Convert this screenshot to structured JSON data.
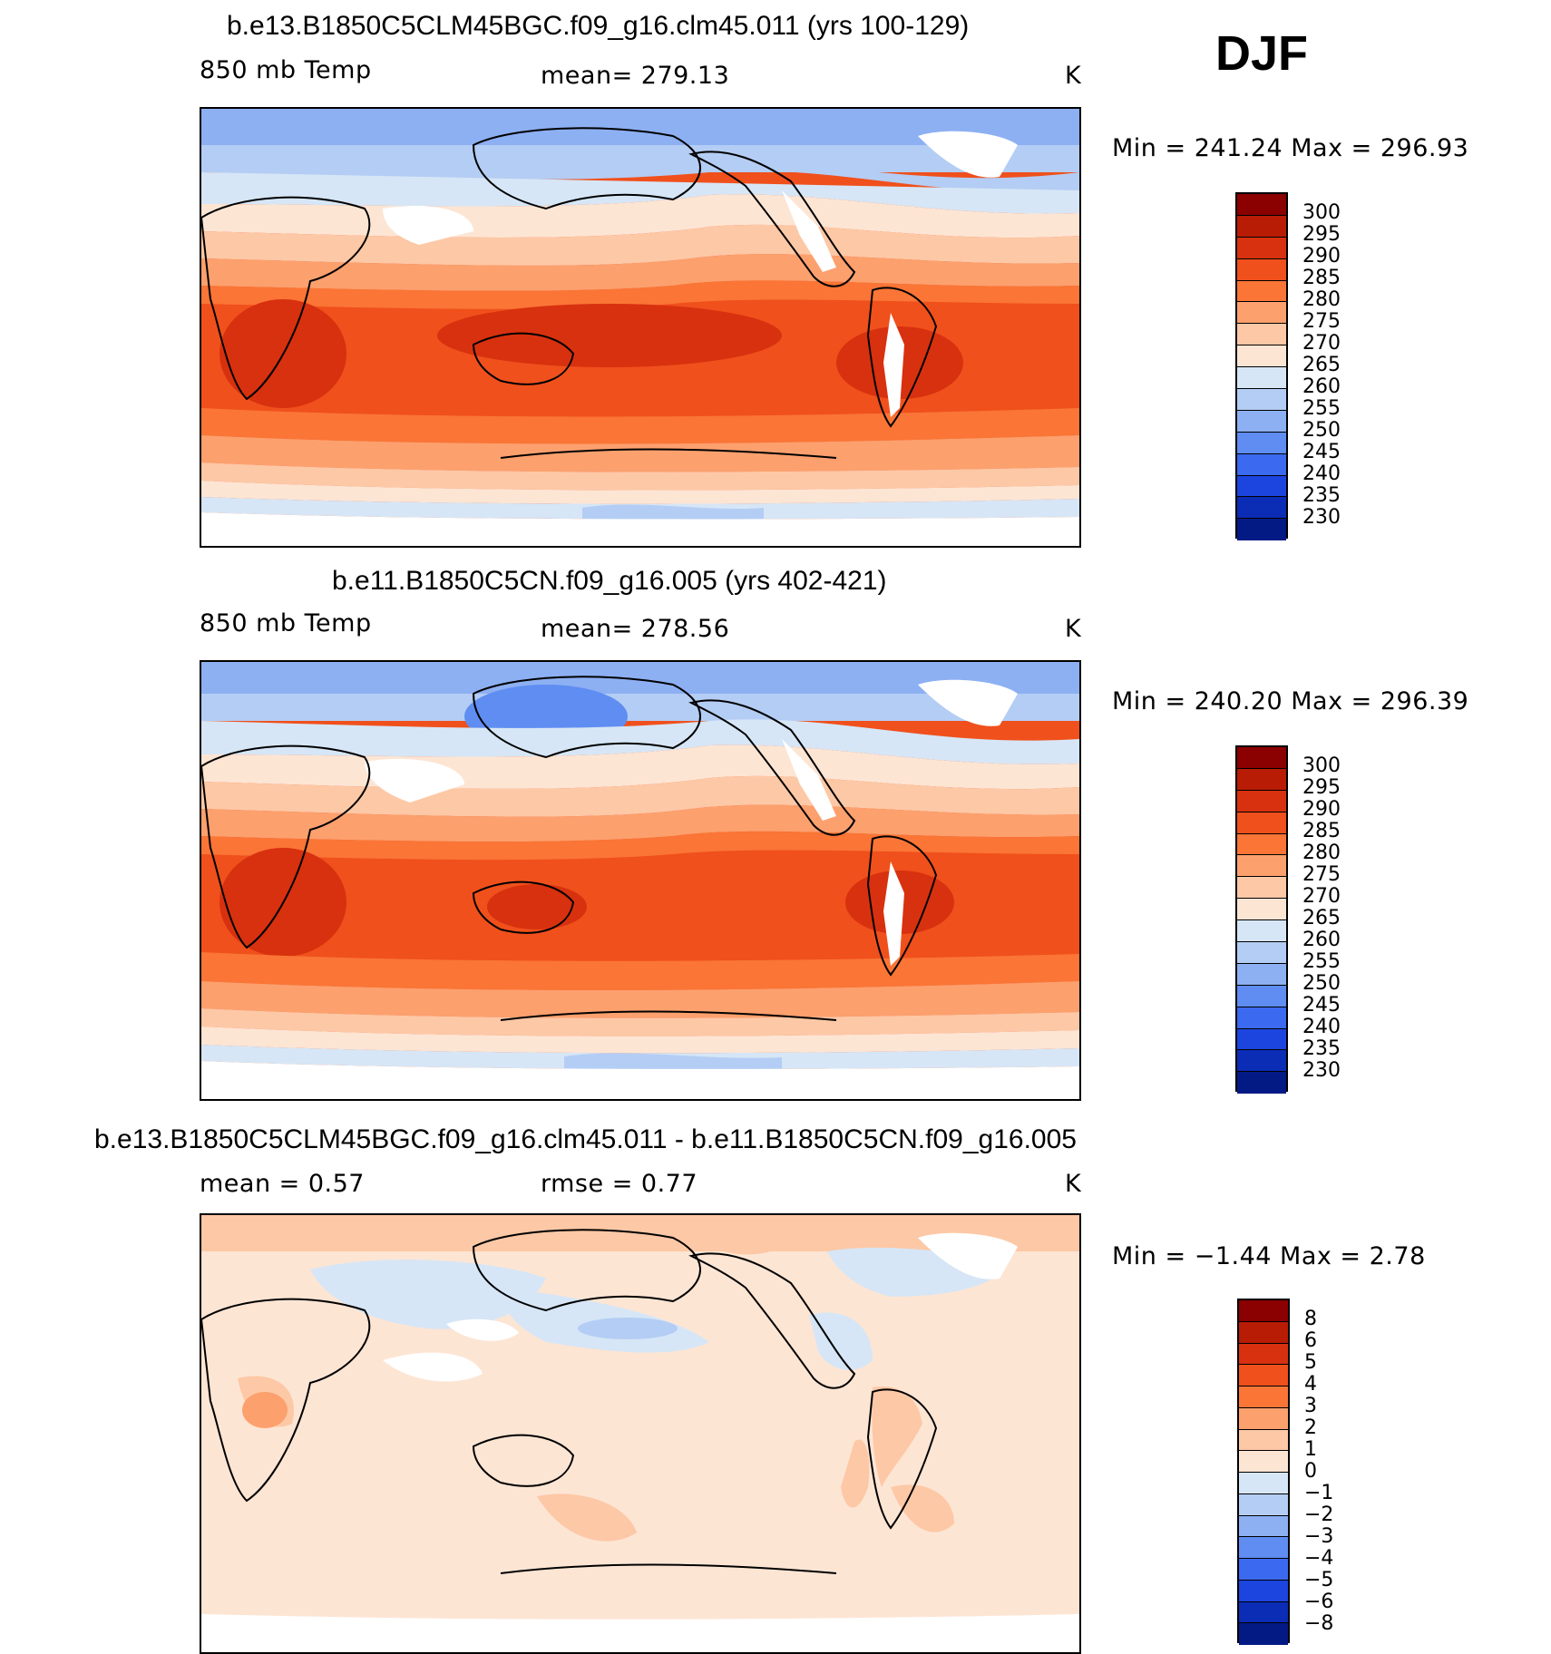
{
  "season": "DJF",
  "panels": [
    {
      "title": "b.e13.B1850C5CLM45BGC.f09_g16.clm45.011 (yrs 100-129)",
      "variable": "850 mb Temp",
      "mean_text": "mean=  279.13",
      "units": "K",
      "minmax_text": "Min  =  241.24  Max  =  296.93"
    },
    {
      "title": "b.e11.B1850C5CN.f09_g16.005 (yrs 402-421)",
      "variable": "850 mb Temp",
      "mean_text": "mean=  278.56",
      "units": "K",
      "minmax_text": "Min  =  240.20  Max  =  296.39"
    },
    {
      "title": "b.e13.B1850C5CLM45BGC.f09_g16.clm45.011 - b.e11.B1850C5CN.f09_g16.005",
      "mean_text": "mean =      0.57",
      "rmse_text": "rmse =      0.77",
      "units": "K",
      "minmax_text": "Min  =    −1.44  Max  =     2.78"
    }
  ],
  "colorbars": {
    "temperature": {
      "labels": [
        "300",
        "295",
        "290",
        "285",
        "280",
        "275",
        "270",
        "265",
        "260",
        "255",
        "250",
        "245",
        "240",
        "235",
        "230"
      ],
      "colors": [
        "#8b0000",
        "#b81c05",
        "#d8310f",
        "#f0501c",
        "#fa7536",
        "#fca06e",
        "#fdc8a6",
        "#fde5d4",
        "#d6e6f6",
        "#b4cdf4",
        "#8db0f3",
        "#5f8df2",
        "#3b69ef",
        "#1c45e0",
        "#0b2cb5",
        "#031a85"
      ]
    },
    "difference": {
      "labels": [
        "8",
        "6",
        "5",
        "4",
        "3",
        "2",
        "1",
        "0",
        "−1",
        "−2",
        "−3",
        "−4",
        "−5",
        "−6",
        "−8"
      ],
      "colors": [
        "#8b0000",
        "#b81c05",
        "#d8310f",
        "#f0501c",
        "#fa7536",
        "#fca06e",
        "#fdc8a6",
        "#fde5d4",
        "#d6e6f6",
        "#b4cdf4",
        "#8db0f3",
        "#5f8df2",
        "#3b69ef",
        "#1c45e0",
        "#0b2cb5",
        "#031a85"
      ]
    }
  },
  "chart_data": [
    {
      "type": "heatmap",
      "title": "b.e13.B1850C5CLM45BGC.f09_g16.clm45.011 (yrs 100-129)",
      "variable": "850 mb Temp",
      "units": "K",
      "mean": 279.13,
      "min": 241.24,
      "max": 296.93,
      "levels": [
        230,
        235,
        240,
        245,
        250,
        255,
        260,
        265,
        270,
        275,
        280,
        285,
        290,
        295,
        300
      ]
    },
    {
      "type": "heatmap",
      "title": "b.e11.B1850C5CN.f09_g16.005 (yrs 402-421)",
      "variable": "850 mb Temp",
      "units": "K",
      "mean": 278.56,
      "min": 240.2,
      "max": 296.39,
      "levels": [
        230,
        235,
        240,
        245,
        250,
        255,
        260,
        265,
        270,
        275,
        280,
        285,
        290,
        295,
        300
      ]
    },
    {
      "type": "heatmap",
      "title": "b.e13.B1850C5CLM45BGC.f09_g16.clm45.011 - b.e11.B1850C5CN.f09_g16.005",
      "units": "K",
      "mean": 0.57,
      "rmse": 0.77,
      "min": -1.44,
      "max": 2.78,
      "levels": [
        -8,
        -6,
        -5,
        -4,
        -3,
        -2,
        -1,
        0,
        1,
        2,
        3,
        4,
        5,
        6,
        8
      ]
    }
  ]
}
